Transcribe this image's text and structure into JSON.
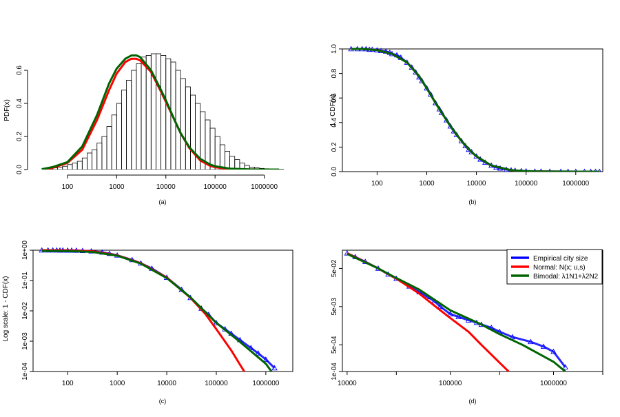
{
  "colors": {
    "empirical": "#0000ff",
    "normal": "#ff0000",
    "bimodal": "#006400",
    "axis": "#000000",
    "bars": "#000000"
  },
  "legend": {
    "empirical": "Empirical city size",
    "normal": "Normal: N(x; u,s)",
    "bimodal": "Bimodal: λ1N1+λ2N2"
  },
  "chart_data": [
    {
      "id": "a",
      "type": "histogram+line",
      "caption": "(a)",
      "xlabel": "",
      "ylabel": "PDF(x)",
      "xscale": "log10",
      "xlim": [
        20,
        2500000
      ],
      "ylim": [
        0,
        0.7
      ],
      "xticks": [
        100,
        1000,
        10000,
        100000,
        1000000
      ],
      "xticklabels": [
        "100",
        "1000",
        "10000",
        "100000",
        "1000000"
      ],
      "yticks": [
        0,
        0.2,
        0.4,
        0.6
      ],
      "yticklabels": [
        "0.0",
        "0.2",
        "0.4",
        "0.6"
      ],
      "histogram": {
        "bin_log10_start": 1.5,
        "bin_width_log10": 0.1,
        "heights": [
          0.0,
          0.005,
          0.01,
          0.015,
          0.02,
          0.03,
          0.04,
          0.05,
          0.07,
          0.1,
          0.12,
          0.16,
          0.2,
          0.26,
          0.33,
          0.4,
          0.48,
          0.54,
          0.6,
          0.64,
          0.68,
          0.69,
          0.7,
          0.7,
          0.69,
          0.67,
          0.65,
          0.6,
          0.55,
          0.5,
          0.45,
          0.4,
          0.35,
          0.3,
          0.25,
          0.2,
          0.15,
          0.11,
          0.08,
          0.06,
          0.04,
          0.025,
          0.015,
          0.01,
          0.007,
          0.005,
          0.003,
          0.002,
          0.001
        ]
      },
      "series": [
        {
          "name": "Normal: N(x; u,s)",
          "color_key": "normal",
          "x": [
            30,
            50,
            100,
            200,
            400,
            700,
            1000,
            1500,
            2000,
            2500,
            3000,
            5000,
            8000,
            10000,
            15000,
            20000,
            30000,
            50000,
            80000,
            100000,
            200000,
            500000,
            1000000,
            2000000
          ],
          "y": [
            0.001,
            0.01,
            0.04,
            0.12,
            0.3,
            0.48,
            0.58,
            0.65,
            0.67,
            0.67,
            0.66,
            0.59,
            0.47,
            0.41,
            0.3,
            0.22,
            0.13,
            0.055,
            0.022,
            0.014,
            0.003,
            0.0003,
            0.0,
            0.0
          ]
        },
        {
          "name": "Bimodal: λ1N1+λ2N2",
          "color_key": "bimodal",
          "x": [
            30,
            50,
            100,
            200,
            400,
            700,
            1000,
            1500,
            2000,
            2500,
            3000,
            5000,
            8000,
            10000,
            15000,
            20000,
            30000,
            50000,
            80000,
            100000,
            200000,
            500000,
            1000000,
            2000000
          ],
          "y": [
            0.002,
            0.015,
            0.045,
            0.14,
            0.33,
            0.52,
            0.61,
            0.67,
            0.69,
            0.69,
            0.68,
            0.6,
            0.48,
            0.42,
            0.3,
            0.22,
            0.135,
            0.065,
            0.03,
            0.02,
            0.006,
            0.001,
            0.0002,
            0.0
          ]
        }
      ]
    },
    {
      "id": "b",
      "type": "line+scatter",
      "caption": "(b)",
      "xlabel": "",
      "ylabel": "1 - CDF(x)",
      "xscale": "log10",
      "xlim": [
        20,
        3500000
      ],
      "ylim": [
        0,
        1.0
      ],
      "xticks": [
        100,
        1000,
        10000,
        100000,
        1000000
      ],
      "xticklabels": [
        "100",
        "1000",
        "10000",
        "100000",
        "1000000"
      ],
      "yticks": [
        0,
        0.2,
        0.4,
        0.6,
        0.8,
        1.0
      ],
      "yticklabels": [
        "0.0",
        "0.2",
        "0.4",
        "0.6",
        "0.8",
        "1.0"
      ],
      "points": {
        "name": "Empirical city size",
        "x": [
          30,
          40,
          50,
          60,
          70,
          80,
          100,
          120,
          150,
          180,
          200,
          250,
          300,
          400,
          500,
          600,
          700,
          800,
          1000,
          1200,
          1500,
          1800,
          2000,
          2500,
          3000,
          3500,
          4000,
          5000,
          6000,
          7000,
          8000,
          10000,
          12000,
          15000,
          20000,
          25000,
          30000,
          40000,
          50000,
          60000,
          80000,
          100000,
          150000,
          200000,
          300000,
          500000,
          700000,
          1000000,
          1500000,
          2000000,
          2500000,
          3000000
        ],
        "y": [
          1.0,
          1.0,
          1.0,
          1.0,
          0.995,
          0.995,
          0.99,
          0.985,
          0.98,
          0.97,
          0.96,
          0.95,
          0.93,
          0.89,
          0.85,
          0.81,
          0.77,
          0.74,
          0.68,
          0.63,
          0.56,
          0.51,
          0.48,
          0.42,
          0.37,
          0.33,
          0.3,
          0.25,
          0.21,
          0.18,
          0.16,
          0.125,
          0.1,
          0.075,
          0.05,
          0.035,
          0.027,
          0.017,
          0.012,
          0.009,
          0.006,
          0.004,
          0.002,
          0.0015,
          0.001,
          0.0005,
          0.0003,
          0.0002,
          0.0001,
          0.0001,
          0.0,
          0.0
        ]
      },
      "series": [
        {
          "name": "Normal: N(x; u,s)",
          "color_key": "normal",
          "x": [
            30,
            50,
            100,
            200,
            400,
            700,
            1000,
            1500,
            2000,
            3000,
            5000,
            8000,
            10000,
            20000,
            50000,
            100000,
            200000,
            500000,
            1000000,
            3000000
          ],
          "y": [
            1.0,
            1.0,
            0.99,
            0.96,
            0.89,
            0.78,
            0.68,
            0.56,
            0.48,
            0.37,
            0.25,
            0.16,
            0.125,
            0.05,
            0.011,
            0.003,
            0.001,
            0.0,
            0.0,
            0.0
          ]
        },
        {
          "name": "Bimodal: λ1N1+λ2N2",
          "color_key": "bimodal",
          "x": [
            30,
            50,
            100,
            200,
            400,
            700,
            1000,
            1500,
            2000,
            3000,
            5000,
            8000,
            10000,
            20000,
            50000,
            100000,
            200000,
            500000,
            1000000,
            3000000
          ],
          "y": [
            1.0,
            1.0,
            0.99,
            0.96,
            0.89,
            0.78,
            0.68,
            0.56,
            0.48,
            0.37,
            0.25,
            0.16,
            0.125,
            0.05,
            0.012,
            0.004,
            0.0015,
            0.0004,
            0.0001,
            0.0
          ]
        }
      ]
    },
    {
      "id": "c",
      "type": "line+scatter",
      "caption": "(c)",
      "xlabel": "",
      "ylabel": "Log scale: 1 - CDF(x)",
      "xscale": "log10",
      "yscale": "log10",
      "xlim": [
        20,
        3500000
      ],
      "ylim": [
        0.0001,
        1.0
      ],
      "xticks": [
        100,
        1000,
        10000,
        100000,
        1000000
      ],
      "xticklabels": [
        "100",
        "1000",
        "10000",
        "100000",
        "1000000"
      ],
      "yticks": [
        0.0001,
        0.001,
        0.01,
        0.1,
        1.0
      ],
      "yticklabels": [
        "1e-04",
        "1e-03",
        "1e-02",
        "1e-01",
        "1e+00"
      ],
      "points": {
        "name": "Empirical city size",
        "x": [
          30,
          40,
          50,
          60,
          70,
          80,
          100,
          120,
          150,
          200,
          300,
          500,
          700,
          1000,
          2000,
          3000,
          5000,
          10000,
          20000,
          30000,
          50000,
          70000,
          100000,
          150000,
          200000,
          300000,
          500000,
          700000,
          1000000,
          1500000
        ],
        "y": [
          1.0,
          1.0,
          1.0,
          1.0,
          0.995,
          0.995,
          0.99,
          0.985,
          0.98,
          0.96,
          0.93,
          0.85,
          0.77,
          0.68,
          0.48,
          0.37,
          0.25,
          0.125,
          0.05,
          0.027,
          0.012,
          0.0075,
          0.004,
          0.0025,
          0.0018,
          0.0011,
          0.0006,
          0.0004,
          0.00025,
          0.00013
        ]
      },
      "series": [
        {
          "name": "Normal: N(x; u,s)",
          "color_key": "normal",
          "x": [
            30,
            100,
            300,
            1000,
            3000,
            10000,
            30000,
            60000,
            100000,
            200000,
            300000,
            400000
          ],
          "y": [
            1.0,
            0.99,
            0.93,
            0.68,
            0.37,
            0.125,
            0.027,
            0.008,
            0.0025,
            0.0005,
            0.00017,
            8e-05
          ]
        },
        {
          "name": "Bimodal: λ1N1+λ2N2",
          "color_key": "bimodal",
          "x": [
            30,
            100,
            300,
            1000,
            3000,
            10000,
            30000,
            100000,
            300000,
            1000000,
            1300000
          ],
          "y": [
            0.95,
            0.94,
            0.88,
            0.66,
            0.36,
            0.12,
            0.028,
            0.004,
            0.00095,
            0.00018,
            0.0001
          ]
        }
      ]
    },
    {
      "id": "d",
      "type": "line+scatter",
      "caption": "(d)",
      "xlabel": "",
      "ylabel": "",
      "xscale": "log10",
      "yscale": "log10",
      "xlim": [
        9000,
        3000000
      ],
      "ylim": [
        0.0001,
        0.15
      ],
      "xticks": [
        10000,
        100000,
        1000000
      ],
      "xticklabels": [
        "10000",
        "100000",
        "1000000"
      ],
      "xminor": [
        30000,
        300000,
        3000000
      ],
      "yticks": [
        0.0001,
        0.0005,
        0.005,
        0.05
      ],
      "yticklabels": [
        "1e-04",
        "5e-04",
        "5e-03",
        "5e-02"
      ],
      "points": {
        "name": "Empirical city size",
        "x": [
          10000,
          12000,
          15000,
          20000,
          25000,
          30000,
          40000,
          50000,
          60000,
          70000,
          80000,
          100000,
          120000,
          150000,
          180000,
          200000,
          250000,
          300000,
          400000,
          600000,
          800000,
          1000000,
          1300000
        ],
        "y": [
          0.125,
          0.1,
          0.075,
          0.05,
          0.035,
          0.027,
          0.017,
          0.012,
          0.009,
          0.007,
          0.005,
          0.0032,
          0.0027,
          0.0022,
          0.0019,
          0.0017,
          0.0014,
          0.0011,
          0.0008,
          0.0006,
          0.00045,
          0.00033,
          0.00013
        ]
      },
      "series": [
        {
          "name": "Normal: N(x; u,s)",
          "color_key": "normal",
          "x": [
            10000,
            20000,
            30000,
            50000,
            80000,
            100000,
            150000,
            200000,
            300000,
            400000
          ],
          "y": [
            0.125,
            0.05,
            0.027,
            0.011,
            0.004,
            0.0025,
            0.0011,
            0.0005,
            0.00017,
            8e-05
          ]
        },
        {
          "name": "Bimodal: λ1N1+λ2N2",
          "color_key": "bimodal",
          "x": [
            10000,
            20000,
            30000,
            50000,
            100000,
            200000,
            300000,
            500000,
            1000000,
            1300000
          ],
          "y": [
            0.12,
            0.05,
            0.028,
            0.014,
            0.004,
            0.0017,
            0.00095,
            0.0005,
            0.00018,
            0.0001
          ]
        }
      ]
    }
  ]
}
